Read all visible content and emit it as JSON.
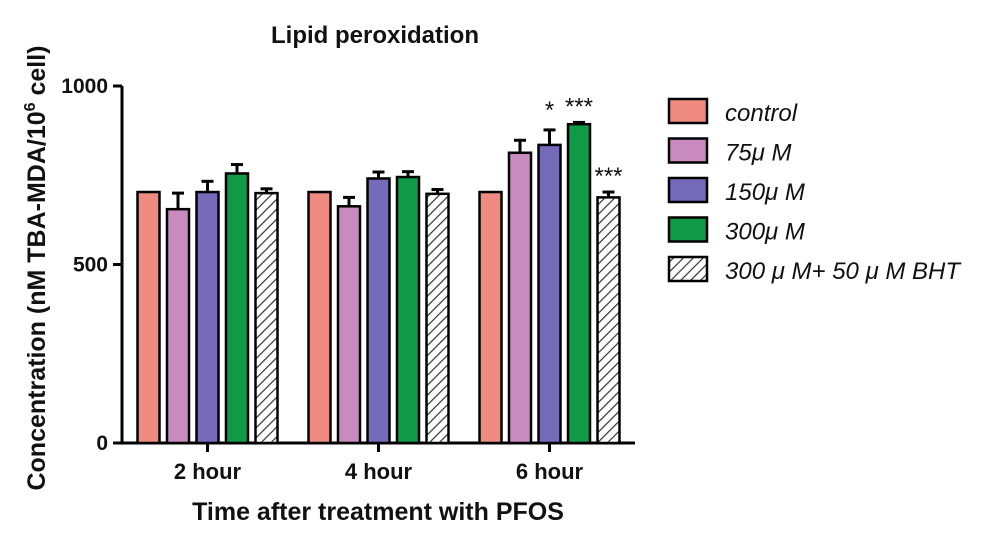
{
  "chart_data": {
    "type": "bar",
    "title": "Lipid peroxidation",
    "xlabel": "Time after treatment with PFOS",
    "ylabel_main": "Concentration (nM TBA-MDA/10",
    "ylabel_sup": "6",
    "ylabel_end": " cell)",
    "ylim": [
      0,
      1000
    ],
    "yticks": [
      "0",
      "500",
      "1000"
    ],
    "categories": [
      "2 hour",
      "4 hour",
      "6 hour"
    ],
    "legend_position": "right",
    "grid": false,
    "series": [
      {
        "name": "control",
        "color": "#f08b82",
        "pattern": "solid",
        "values": [
          703,
          703,
          703
        ],
        "errors": [
          0,
          0,
          0
        ],
        "significance": [
          "",
          "",
          ""
        ]
      },
      {
        "name": "75μ M",
        "color": "#c98bbf",
        "pattern": "solid",
        "values": [
          655,
          663,
          813
        ],
        "errors": [
          45,
          25,
          35
        ],
        "significance": [
          "",
          "",
          ""
        ]
      },
      {
        "name": "150μ M",
        "color": "#7569ba",
        "pattern": "solid",
        "values": [
          703,
          741,
          835
        ],
        "errors": [
          30,
          18,
          42
        ],
        "significance": [
          "",
          "",
          "*"
        ]
      },
      {
        "name": "300μ M",
        "color": "#0f9a47",
        "pattern": "solid",
        "values": [
          755,
          745,
          893
        ],
        "errors": [
          25,
          15,
          5
        ],
        "significance": [
          "",
          "",
          "***"
        ]
      },
      {
        "name": "300 μ M+ 50 μ M BHT",
        "color": "#ffffff",
        "pattern": "hatch",
        "values": [
          700,
          698,
          688
        ],
        "errors": [
          12,
          12,
          15
        ],
        "significance": [
          "",
          "",
          "***"
        ]
      }
    ]
  }
}
